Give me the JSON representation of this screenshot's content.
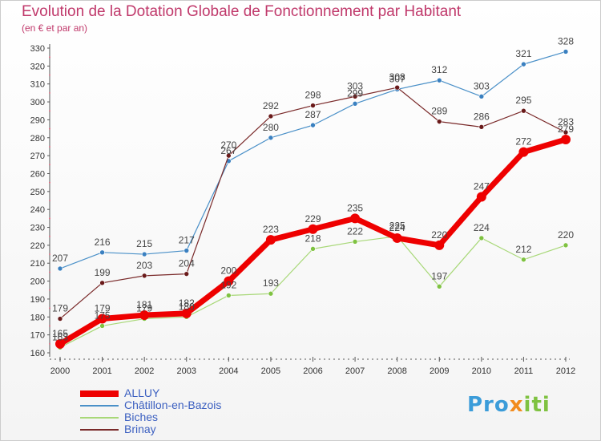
{
  "header": {
    "title": "Evolution de la Dotation Globale de Fonctionnement par Habitant",
    "subtitle": "(en € et par an)"
  },
  "logo": {
    "text_part1": "Pro",
    "text_part2": "x",
    "text_part3": "iti",
    "colors": [
      "#3b9cd9",
      "#f28c1e",
      "#7fc241"
    ]
  },
  "chart_data": {
    "type": "line",
    "title": "Evolution de la Dotation Globale de Fonctionnement par Habitant",
    "subtitle": "(en € et par an)",
    "xlabel": "",
    "ylabel": "",
    "x": [
      "2000",
      "2001",
      "2002",
      "2003",
      "2004",
      "2005",
      "2006",
      "2007",
      "2008",
      "2009",
      "2010",
      "2011",
      "2012"
    ],
    "ylim": [
      160,
      330
    ],
    "yticks": [
      160,
      170,
      180,
      190,
      200,
      210,
      220,
      230,
      240,
      250,
      260,
      270,
      280,
      290,
      300,
      310,
      320,
      330
    ],
    "grid": false,
    "legend_position": "bottom-left",
    "series": [
      {
        "name": "Châtillon-en-Bazois",
        "color": "#4a90c8",
        "dot": "#3a80c0",
        "width": 1.2,
        "values": [
          207,
          216,
          215,
          217,
          267,
          280,
          287,
          299,
          307,
          312,
          303,
          321,
          328
        ]
      },
      {
        "name": "Biches",
        "color": "#a8d878",
        "dot": "#7fc241",
        "width": 1.2,
        "values": [
          163,
          175,
          179,
          180,
          192,
          193,
          218,
          222,
          225,
          197,
          224,
          212,
          220
        ]
      },
      {
        "name": "Brinay",
        "color": "#7a2a2a",
        "dot": "#6a1a1a",
        "width": 1.2,
        "values": [
          179,
          199,
          203,
          204,
          270,
          292,
          298,
          303,
          308,
          289,
          286,
          295,
          283
        ]
      },
      {
        "name": "ALLUY",
        "color": "#ee0000",
        "dot": "#ee0000",
        "width": 7,
        "values": [
          165,
          179,
          181,
          182,
          200,
          223,
          229,
          235,
          224,
          220,
          247,
          272,
          279
        ]
      }
    ],
    "legend_order": [
      "ALLUY",
      "Châtillon-en-Bazois",
      "Biches",
      "Brinay"
    ]
  }
}
